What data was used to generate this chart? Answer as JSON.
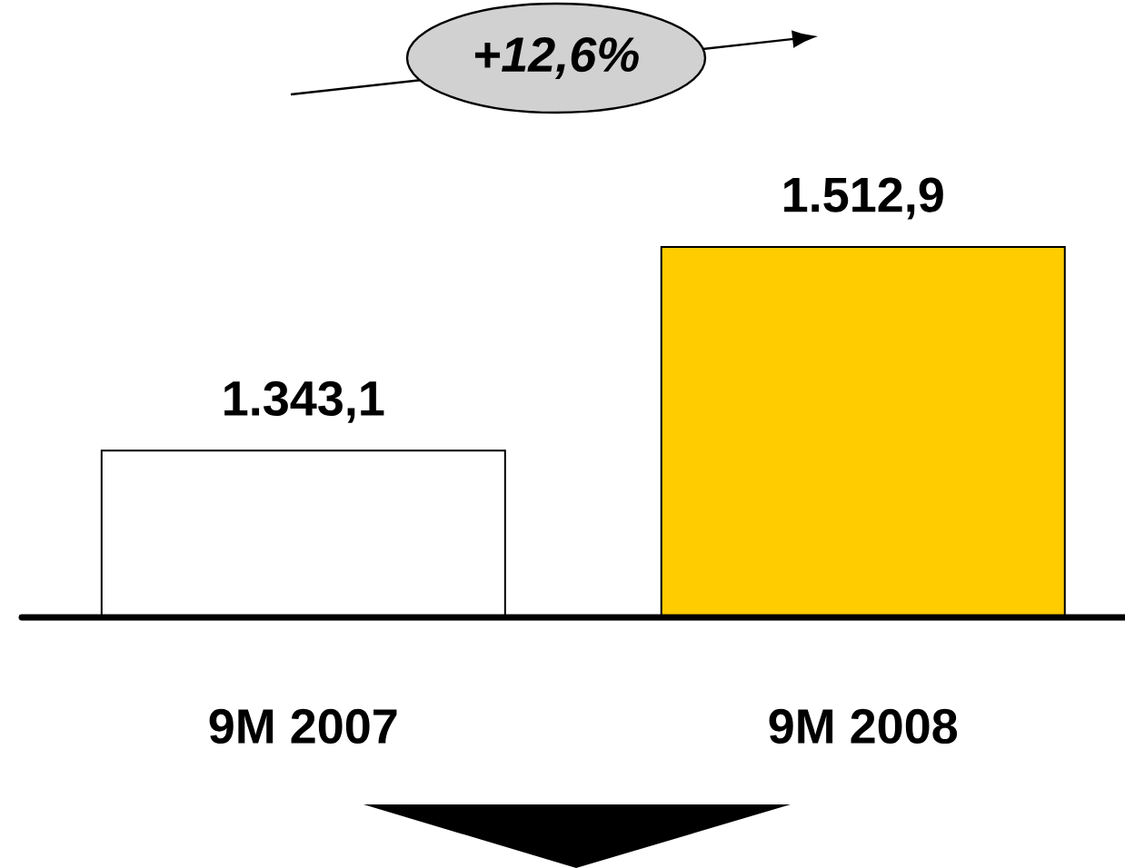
{
  "chart_data": {
    "type": "bar",
    "categories": [
      "9M 2007",
      "9M 2008"
    ],
    "values": [
      1343.1,
      1512.9
    ],
    "colors": [
      "#ffffff",
      "#ffcc00"
    ],
    "value_labels": [
      "1.343,1",
      "1.512,9"
    ],
    "ylim": [
      1204,
      1512.9
    ],
    "annotations": [
      "+12,6%"
    ]
  }
}
